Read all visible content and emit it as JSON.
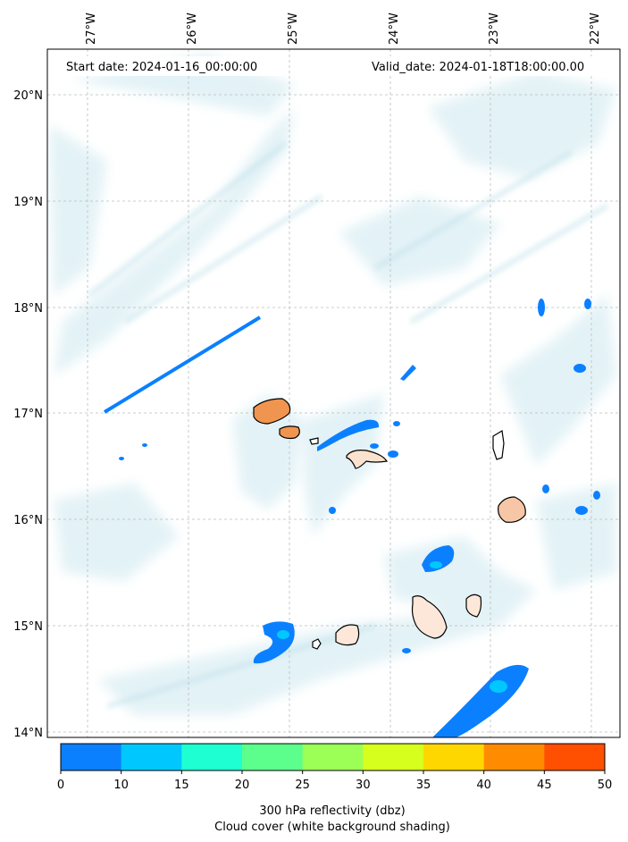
{
  "map": {
    "start_label": "Start date: 2024-01-16_00:00:00",
    "valid_label": "Valid_date: 2024-01-18T18:00:00.00",
    "lon_ticks": [
      "27°W",
      "26°W",
      "25°W",
      "24°W",
      "23°W",
      "22°W"
    ],
    "lat_ticks": [
      "20°N",
      "19°N",
      "18°N",
      "17°N",
      "16°N",
      "15°N",
      "14°N"
    ],
    "lon_range": [
      -27.4,
      -21.8
    ],
    "lat_range": [
      13.95,
      20.4
    ]
  },
  "colorbar": {
    "ticks": [
      "0",
      "10",
      "15",
      "20",
      "25",
      "30",
      "35",
      "40",
      "45",
      "50"
    ],
    "colors": [
      "#0b80ff",
      "#00c8ff",
      "#1effd2",
      "#5dff8c",
      "#9bff55",
      "#d7ff1e",
      "#ffd700",
      "#ff8c00",
      "#ff4f00"
    ],
    "label_line1": "300 hPa reflectivity (dbz)",
    "label_line2": "Cloud cover (white background shading)"
  }
}
